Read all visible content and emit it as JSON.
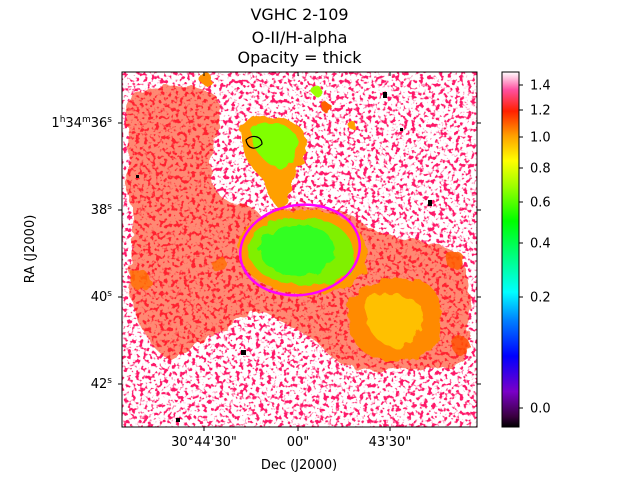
{
  "chart_data": {
    "type": "heatmap",
    "title_lines": [
      "VGHC 2-109",
      "O-II/H-alpha",
      "Opacity = thick"
    ],
    "xlabel": "Dec (J2000)",
    "ylabel": "RA (J2000)",
    "x_ticks": [
      "30°44'30\"",
      "00\"",
      "43'30\""
    ],
    "y_ticks": [
      {
        "label": "1h34m36s",
        "main": "1",
        "sup1": "h",
        "mid": "34",
        "sup2": "m",
        "tail": "36",
        "sup3": "s"
      },
      {
        "label": "38s",
        "main": "38",
        "sup": "s"
      },
      {
        "label": "40s",
        "main": "40",
        "sup": "s"
      },
      {
        "label": "42s",
        "main": "42",
        "sup": "s"
      }
    ],
    "colorbar": {
      "colormap": "gist_ncar-like (black, purple, blue, cyan, green, yellow, orange, red, pink, white)",
      "tick_labels": [
        "0.0",
        "0.2",
        "0.4",
        "0.6",
        "0.8",
        "1.0",
        "1.2",
        "1.4"
      ],
      "ticks": [
        0.0,
        0.2,
        0.4,
        0.6,
        0.8,
        1.0,
        1.2,
        1.4
      ],
      "range": [
        -0.05,
        1.48
      ],
      "scale": "nonlinear"
    },
    "overlay": {
      "shape": "ellipse",
      "color": "#ff00ff"
    },
    "regions": [
      {
        "name": "central blob",
        "typical_value": 0.55
      },
      {
        "name": "northern blob",
        "typical_value": 0.6
      },
      {
        "name": "south-west blob",
        "typical_value": 0.9
      },
      {
        "name": "diffuse halo",
        "typical_value": 1.05
      }
    ]
  }
}
